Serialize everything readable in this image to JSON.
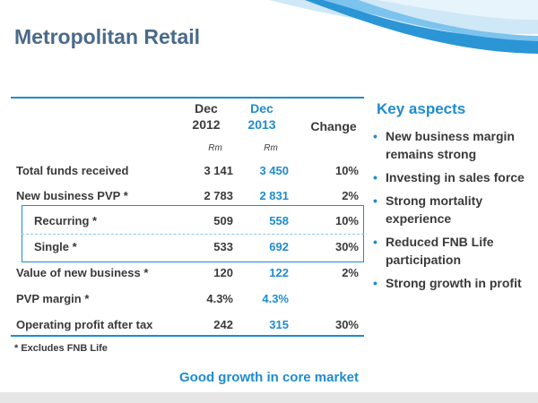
{
  "title": "Metropolitan Retail",
  "table": {
    "headers": {
      "col2012": [
        "Dec",
        "2012"
      ],
      "col2013": [
        "Dec",
        "2013"
      ],
      "change": "Change",
      "units": "Rm"
    },
    "rows": [
      {
        "label": "Total funds received",
        "v2012": "3 141",
        "v2013": "3 450",
        "change": "10%"
      },
      {
        "label": "New business PVP *",
        "v2012": "2 783",
        "v2013": "2 831",
        "change": "2%"
      },
      {
        "label": "Recurring *",
        "v2012": "509",
        "v2013": "558",
        "change": "10%"
      },
      {
        "label": "Single *",
        "v2012": "533",
        "v2013": "692",
        "change": "30%"
      },
      {
        "label": "Value of new business *",
        "v2012": "120",
        "v2013": "122",
        "change": "2%"
      },
      {
        "label": "PVP margin *",
        "v2012": "4.3%",
        "v2013": "4.3%",
        "change": ""
      },
      {
        "label": "Operating profit after tax",
        "v2012": "242",
        "v2013": "315",
        "change": "30%"
      }
    ]
  },
  "footnote": "* Excludes FNB Life",
  "tagline": "Good growth in core market",
  "key_aspects": {
    "title": "Key aspects",
    "bullets": [
      "New business margin remains strong",
      "Investing in sales force",
      "Strong mortality experience",
      "Reduced FNB Life participation",
      "Strong growth in profit"
    ]
  },
  "colors": {
    "accent": "#1e8ccf",
    "title": "#4a6a8a",
    "text": "#3a3a3a"
  }
}
